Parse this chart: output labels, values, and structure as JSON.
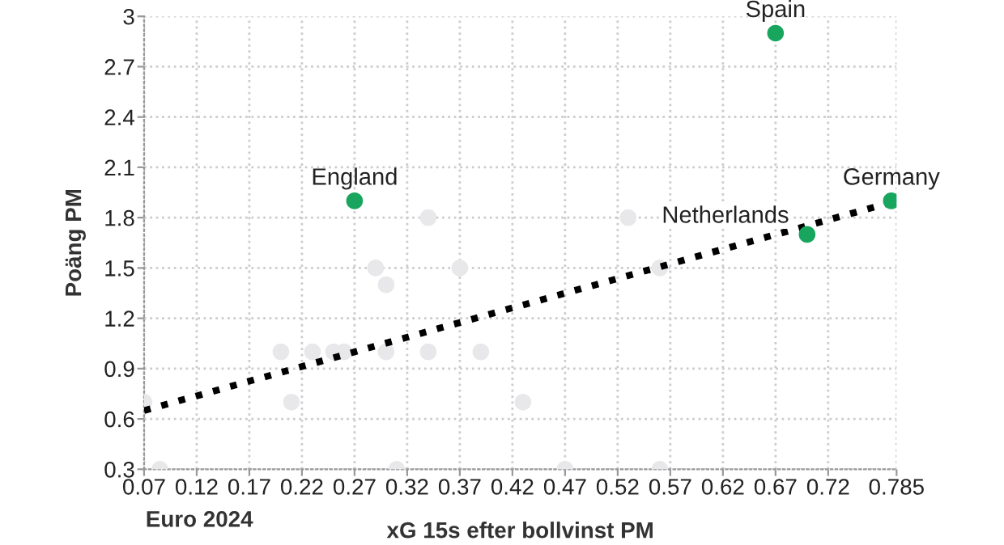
{
  "chart_data": {
    "type": "scatter",
    "xlabel": "xG 15s efter bollvinst PM",
    "ylabel": "Poäng PM",
    "annotations": [
      "Euro 2024",
      {
        "text": "Spain",
        "x": 0.67,
        "y": 2.9
      },
      {
        "text": "England",
        "x": 0.27,
        "y": 1.9
      },
      {
        "text": "Netherlands",
        "x": 0.7,
        "y": 1.7
      },
      {
        "text": "Germany",
        "x": 0.78,
        "y": 1.9
      }
    ],
    "series": [
      {
        "color": "#e8e8ea",
        "x": [
          0.34,
          0.53,
          0.29,
          0.37,
          0.56,
          0.3,
          0.2,
          0.23,
          0.25,
          0.26,
          0.3,
          0.34,
          0.39,
          0.21,
          0.07,
          0.43,
          0.085,
          0.31,
          0.47,
          0.56
        ],
        "values": [
          1.8,
          1.8,
          1.5,
          1.5,
          1.5,
          1.4,
          1.0,
          1.0,
          1.0,
          1.0,
          1.0,
          1.0,
          1.0,
          0.7,
          0.7,
          0.7,
          0.3,
          0.3,
          0.3,
          0.3
        ]
      },
      {
        "type": "line",
        "color": "#000000",
        "line_style": "dotted",
        "marker": "none",
        "x": [
          0.07,
          0.785
        ],
        "values": [
          0.65,
          1.9
        ]
      },
      {
        "color": "#18a55e",
        "x": [
          0.67,
          0.27,
          0.7,
          0.78
        ],
        "values": [
          2.9,
          1.9,
          1.7,
          1.9
        ]
      }
    ],
    "xlim": [
      0.07,
      0.785
    ],
    "ylim": [
      0.3,
      3
    ],
    "xticks": [
      0.07,
      0.12,
      0.17,
      0.22,
      0.27,
      0.32,
      0.37,
      0.42,
      0.47,
      0.52,
      0.57,
      0.62,
      0.67,
      0.72,
      0.785
    ],
    "yticks": [
      0.3,
      0.6,
      0.9,
      1.2,
      1.5,
      1.8,
      2.1,
      2.4,
      2.7,
      3
    ],
    "grid": true,
    "marker": "circle",
    "legend": false
  }
}
